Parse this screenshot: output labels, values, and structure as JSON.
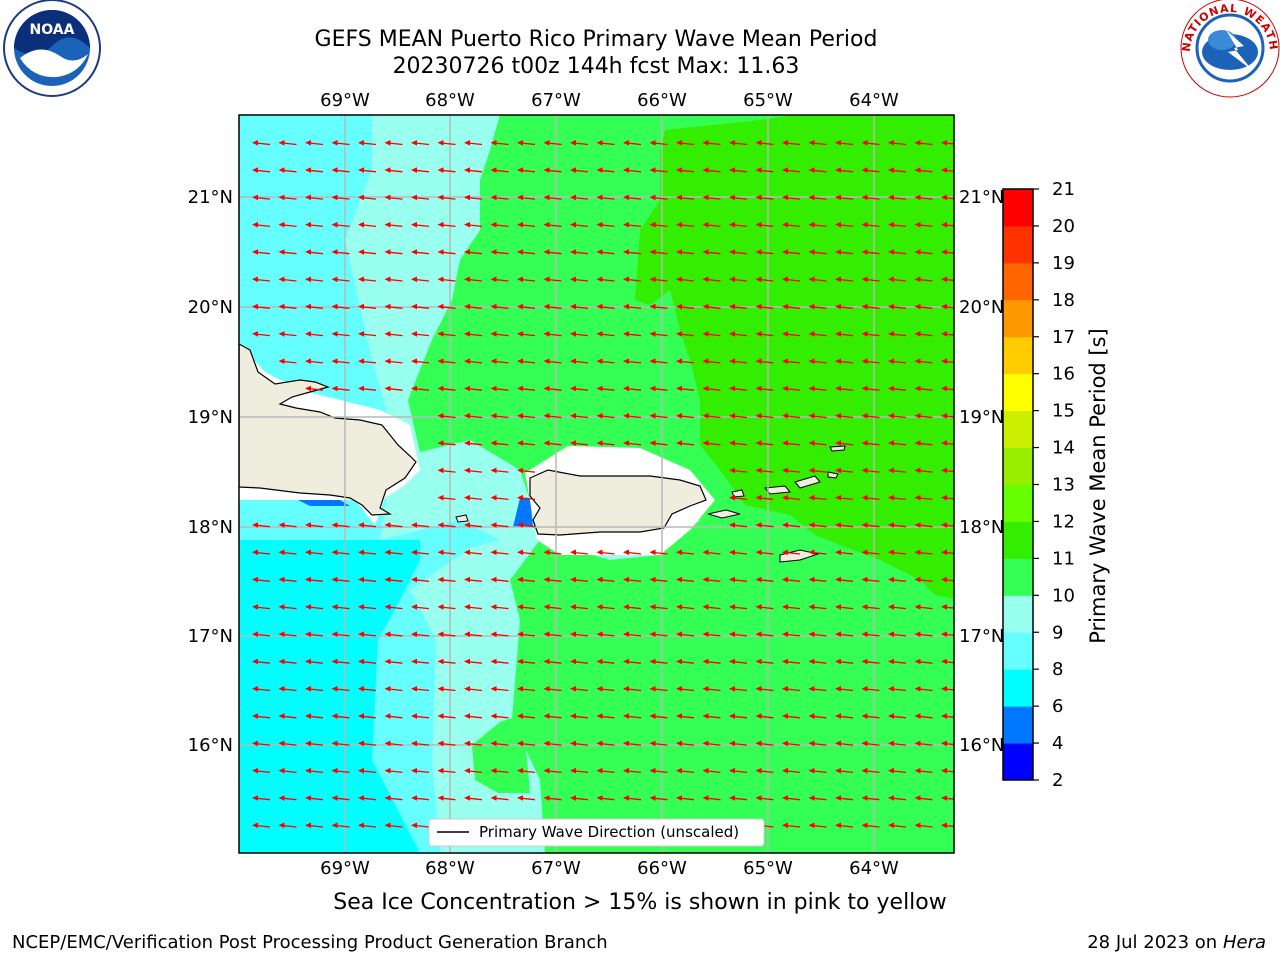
{
  "title_line1": "GEFS MEAN Puerto Rico Primary Wave Mean Period",
  "title_line2": "20230726 t00z 144h fcst   Max: 11.63",
  "lon_labels": [
    "69°W",
    "68°W",
    "67°W",
    "66°W",
    "65°W",
    "64°W"
  ],
  "lat_labels": [
    "21°N",
    "20°N",
    "19°N",
    "18°N",
    "17°N",
    "16°N"
  ],
  "colorbar": {
    "label": "Primary Wave Mean Period [s]",
    "ticks": [
      "2",
      "4",
      "6",
      "8",
      "9",
      "10",
      "11",
      "12",
      "13",
      "14",
      "15",
      "16",
      "17",
      "18",
      "19",
      "20",
      "21"
    ],
    "colors": [
      "#0000ff",
      "#0077ff",
      "#00ffff",
      "#66ffff",
      "#99ffee",
      "#33ff55",
      "#33ee00",
      "#66ff00",
      "#99ee00",
      "#ccee00",
      "#ffff00",
      "#ffcc00",
      "#ff9900",
      "#ff6600",
      "#ff3300",
      "#ff0000"
    ]
  },
  "legend_label": "Primary Wave Direction (unscaled)",
  "bottom_note": "Sea Ice Concentration > 15% is shown in pink to yellow",
  "footer_left": "NCEP/EMC/Verification Post Processing Product Generation Branch",
  "footer_date": "28 Jul 2023 on ",
  "footer_machine": "Hera",
  "logo_left_text": "NOAA",
  "logo_right_text": "NATIONAL WEATHER SERVICE"
}
